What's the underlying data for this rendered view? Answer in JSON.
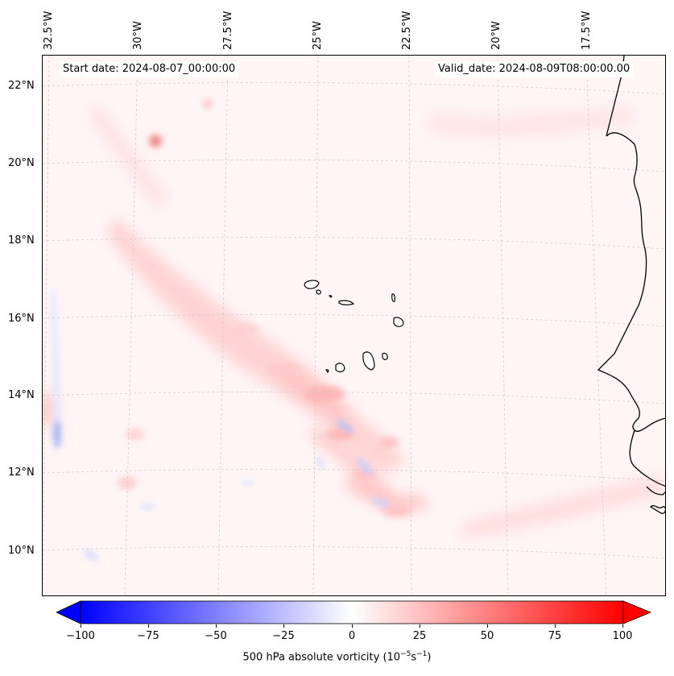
{
  "map": {
    "start_date": "Start date: 2024-08-07_00:00:00",
    "valid_date": "Valid_date: 2024-08-09T08:00:00.00",
    "lon_labels": [
      "32.5°W",
      "30°W",
      "27.5°W",
      "25°W",
      "22.5°W",
      "20°W",
      "17.5°W"
    ],
    "lat_labels": [
      "22°N",
      "20°N",
      "18°N",
      "16°N",
      "14°N",
      "12°N",
      "10°N"
    ]
  },
  "colorbar": {
    "label_main": "500 hPa absolute vorticity (10",
    "exp1": "−5",
    "label_mid": "s",
    "exp2": "−1",
    "label_end": ")",
    "ticks": [
      "−100",
      "−75",
      "−50",
      "−25",
      "0",
      "25",
      "50",
      "75",
      "100"
    ],
    "min_color": "#0000ff",
    "mid_color": "#ffffff",
    "max_color": "#ff0000"
  }
}
